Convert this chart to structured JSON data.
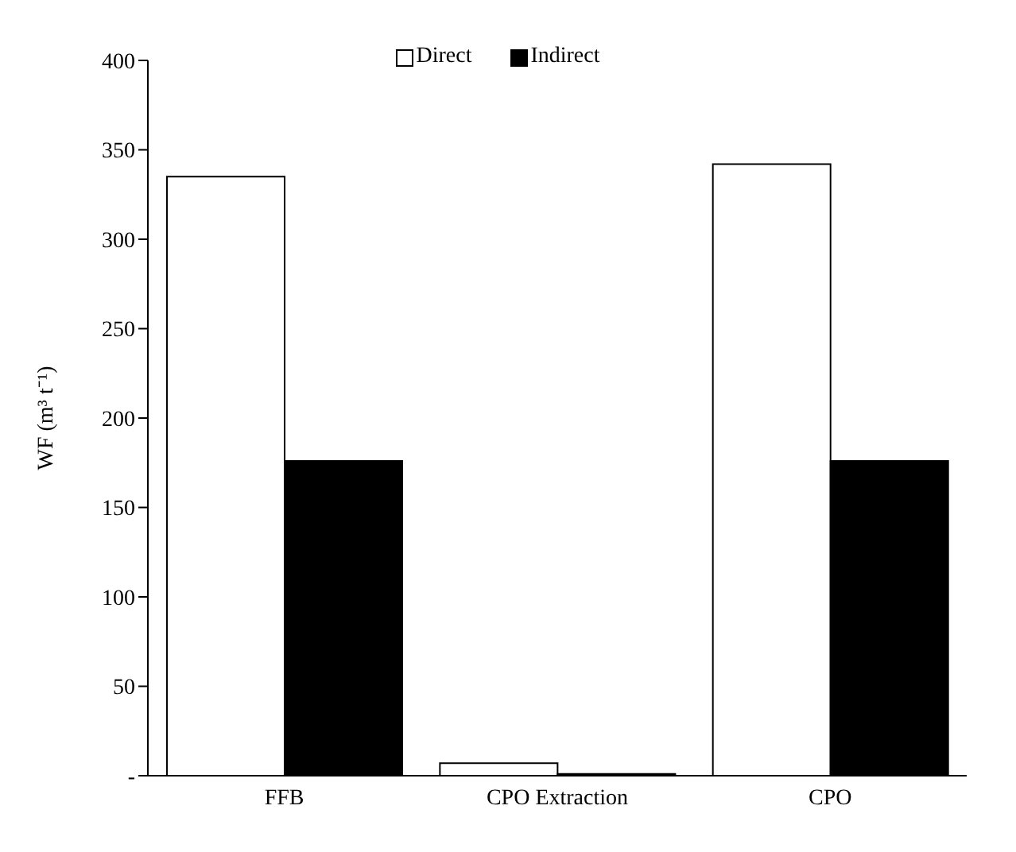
{
  "chart_data": {
    "type": "bar",
    "ylabel": "WF (m³ t⁻¹)",
    "categories": [
      "FFB",
      "CPO Extraction",
      "CPO"
    ],
    "series": [
      {
        "name": "Direct",
        "color": "#ffffff",
        "values": [
          335,
          7,
          342
        ]
      },
      {
        "name": "Indirect",
        "color": "#000000",
        "values": [
          176,
          1,
          176
        ]
      }
    ],
    "ylim": [
      0,
      400
    ],
    "yticks": [
      {
        "value": 0,
        "label": "-"
      },
      50,
      100,
      150,
      200,
      250,
      300,
      350,
      400
    ],
    "grid": false,
    "legend": "top"
  }
}
